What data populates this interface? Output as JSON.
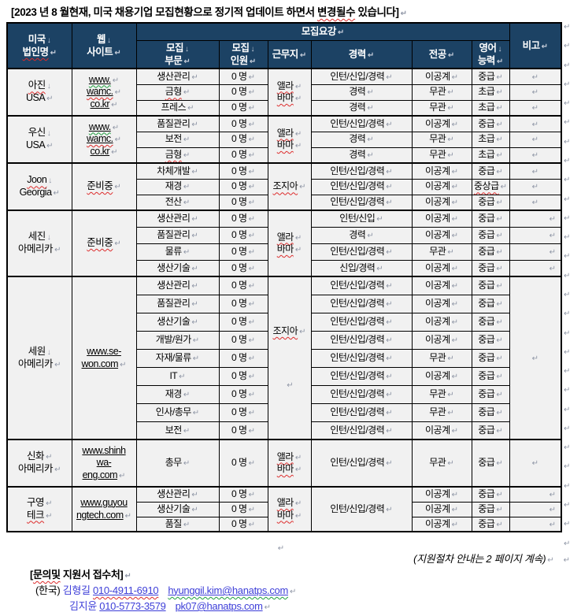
{
  "marks": {
    "para": "↵",
    "line": "↓"
  },
  "margin": {
    "mark_count": 28
  },
  "colors": {
    "header_bg": "#1C4264",
    "cell_bg": "#F1F1F1",
    "link_blue": "#3D3ED8",
    "wavy_red": "#DD2B2B",
    "wavy_green": "#1F9E3D"
  },
  "title": {
    "pre": "[2023 년 8 월현재, 미국 채용기업 모집현황으로 정기적 업데이트 하면서 ",
    "wavy": "변경될수",
    "post": " 있습니다]"
  },
  "header": {
    "corp_l1": "미국",
    "corp_l2": "법인명",
    "web_l1": "웹",
    "web_l2": "사이트",
    "group": "모집요강",
    "dept_l1": "모집",
    "dept_l2": "부문",
    "cnt_l1": "모집",
    "cnt_l2": "인원",
    "location": "근무지",
    "career": "경력",
    "major": "전공",
    "eng_l1": "영어",
    "eng_l2": "능력",
    "note": "비고"
  },
  "sections": [
    {
      "name_l1": "아진",
      "name_l2": "USA",
      "site": [
        "www.",
        "wamc.",
        "co.kr"
      ],
      "loc_l1": "앨라",
      "loc_l2": "바마",
      "rows": [
        {
          "dept": "생산관리",
          "cnt": "0 명",
          "career": "인턴/신입/경력",
          "major": "이공계",
          "eng": "중급"
        },
        {
          "dept": "금형",
          "cnt": "0 명",
          "career": "경력",
          "major": "무관",
          "eng": "초급"
        },
        {
          "dept": "프레스",
          "cnt": "0 명",
          "career": "경력",
          "major": "무관",
          "eng": "초급"
        }
      ]
    },
    {
      "name_l1": "우신",
      "name_l2": "USA",
      "site": [
        "www.",
        "wamc.",
        "co.kr"
      ],
      "loc_l1": "앨라",
      "loc_l2": "바마",
      "rows": [
        {
          "dept": "품질관리",
          "cnt": "0 명",
          "career": "인턴/신입/경력",
          "major": "이공계",
          "eng": "중급"
        },
        {
          "dept": "보전",
          "cnt": "0 명",
          "career": "경력",
          "major": "무관",
          "eng": "초급"
        },
        {
          "dept": "금형",
          "cnt": "0 명",
          "career": "경력",
          "major": "무관",
          "eng": "초급"
        }
      ]
    },
    {
      "name_l1": "Joon",
      "name_l2": "Georgia",
      "site_text": "준비중",
      "loc": "조지아",
      "rows": [
        {
          "dept": "차체개발",
          "cnt": "0 명",
          "career": "인턴/신입/경력",
          "major": "이공계",
          "eng": "중급"
        },
        {
          "dept": "재경",
          "cnt": "0 명",
          "career": "인턴/신입/경력",
          "major": "이공계",
          "eng": "중상급"
        },
        {
          "dept": "전산",
          "cnt": "0 명",
          "career": "인턴/신입/경력",
          "major": "이공계",
          "eng": "중급"
        }
      ]
    },
    {
      "name_l1": "세진",
      "name_l2": "아메리카",
      "site_text": "준비중",
      "loc_l1": "앨라",
      "loc_l2": "바마",
      "rows": [
        {
          "dept": "생산관리",
          "cnt": "0 명",
          "career": "인턴/신입",
          "major": "이공계",
          "eng": "중급"
        },
        {
          "dept": "품질관리",
          "cnt": "0 명",
          "career": "경력",
          "major": "이공계",
          "eng": "중급"
        },
        {
          "dept": "물류",
          "cnt": "0 명",
          "career": "인턴/신입/경력",
          "major": "무관",
          "eng": "중급"
        },
        {
          "dept": "생산기술",
          "cnt": "0 명",
          "career": "신입/경력",
          "major": "이공계",
          "eng": "중급"
        }
      ]
    },
    {
      "name_l1": "세원",
      "name_l2": "아메리카",
      "site": [
        "www.se-",
        "won.com"
      ],
      "loc": "조지아",
      "rows": [
        {
          "dept": "생산관리",
          "cnt": "0 명",
          "career": "인턴/신입/경력",
          "major": "이공계",
          "eng": "중급"
        },
        {
          "dept": "품질관리",
          "cnt": "0 명",
          "career": "인턴/신입/경력",
          "major": "이공계",
          "eng": "중급"
        },
        {
          "dept": "생산기술",
          "cnt": "0 명",
          "career": "인턴/신입/경력",
          "major": "이공계",
          "eng": "중급"
        },
        {
          "dept": "개발/원가",
          "cnt": "0 명",
          "career": "인턴/신입/경력",
          "major": "이공계",
          "eng": "중급"
        },
        {
          "dept": "자재/물류",
          "cnt": "0 명",
          "career": "인턴/신입/경력",
          "major": "무관",
          "eng": "중급"
        },
        {
          "dept": "IT",
          "cnt": "0 명",
          "career": "인턴/신입/경력",
          "major": "이공계",
          "eng": "중급"
        },
        {
          "dept": "재경",
          "cnt": "0 명",
          "career": "인턴/신입/경력",
          "major": "무관",
          "eng": "중급"
        },
        {
          "dept": "인사/총무",
          "cnt": "0 명",
          "career": "인턴/신입/경력",
          "major": "무관",
          "eng": "중급"
        },
        {
          "dept": "보전",
          "cnt": "0 명",
          "career": "인턴/신입/경력",
          "major": "이공계",
          "eng": "중급"
        }
      ]
    },
    {
      "name_l1": "신화",
      "name_l2": "아메리카",
      "site": [
        "www.shinh",
        "wa-",
        "eng.com"
      ],
      "loc_l1": "앨라",
      "loc_l2": "바마",
      "rows": [
        {
          "dept": "총무",
          "cnt": "0 명",
          "career": "인턴/신입/경력",
          "major": "무관",
          "eng": "중급"
        }
      ]
    },
    {
      "name_l1": "구영",
      "name_l2": "테크",
      "site": [
        "www.guyou",
        "ngtech.com"
      ],
      "loc_l1": "앨라",
      "loc_l2": "바마",
      "career_merged": "인턴/신입/경력",
      "rows": [
        {
          "dept": "생산관리",
          "cnt": "0 명",
          "major": "이공계",
          "eng": "중급"
        },
        {
          "dept": "생산기술",
          "cnt": "0 명",
          "major": "이공계",
          "eng": "중급"
        },
        {
          "dept": "품질",
          "cnt": "0 명",
          "major": "이공계",
          "eng": "중급"
        }
      ]
    }
  ],
  "footer": {
    "continue_note": "(지원절차 안내는 2 페이지 계속)",
    "inquiry_pre": "[",
    "inquiry_wavy": "문의및",
    "inquiry_post": " 지원서 접수처]",
    "country_label": "(한국) ",
    "contacts": [
      {
        "name": "김형길 ",
        "phone": "010-4911-6910",
        "email": "hyunggil.kim@hanatps.com"
      },
      {
        "name": "김지윤 ",
        "phone": "010-5773-3579",
        "email": "pk07@hanatps.com"
      }
    ]
  }
}
